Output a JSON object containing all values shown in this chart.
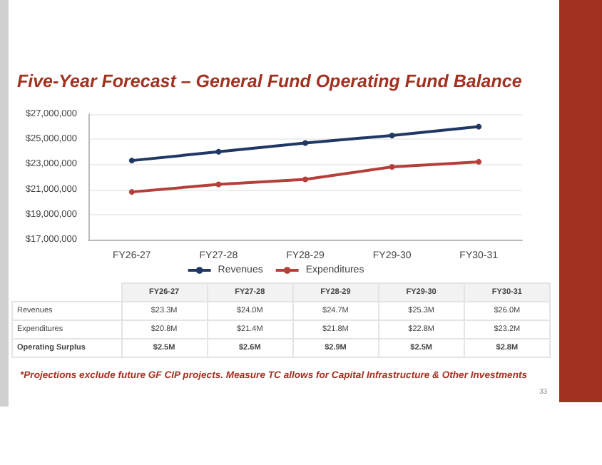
{
  "chart_data": {
    "type": "line",
    "title": "Five-Year Forecast – General Fund Operating Fund Balance",
    "categories": [
      "FY26-27",
      "FY27-28",
      "FY28-29",
      "FY29-30",
      "FY30-31"
    ],
    "series": [
      {
        "name": "Revenues",
        "color": "#1f3864",
        "values": [
          23300000,
          24000000,
          24700000,
          25300000,
          26000000
        ],
        "value_labels": [
          "$23.3M",
          "$24.0M",
          "$24.7M",
          "$25.3M",
          "$26.0M"
        ]
      },
      {
        "name": "Expenditures",
        "color": "#b5403a",
        "values": [
          20800000,
          21400000,
          21800000,
          22800000,
          23200000
        ],
        "value_labels": [
          "$20.8M",
          "$21.4M",
          "$21.8M",
          "$22.8M",
          "$23.2M"
        ]
      }
    ],
    "ylim": [
      17000000,
      27000000
    ],
    "yticks": [
      {
        "value": 17000000,
        "label": "$17,000,000"
      },
      {
        "value": 19000000,
        "label": "$19,000,000"
      },
      {
        "value": 21000000,
        "label": "$21,000,000"
      },
      {
        "value": 23000000,
        "label": "$23,000,000"
      },
      {
        "value": 25000000,
        "label": "$25,000,000"
      },
      {
        "value": 27000000,
        "label": "$27,000,000"
      }
    ],
    "grid": "y",
    "legend": "bottom",
    "marker": "circle",
    "line_style": "solid",
    "annotations": [
      "Operating Surplus",
      "$2.5M",
      "$2.6M",
      "$2.9M",
      "$2.5M",
      "$2.8M",
      "*Projections exclude future GF CIP projects.  Measure TC allows for Capital Infrastructure & Other Investments",
      "33"
    ]
  }
}
